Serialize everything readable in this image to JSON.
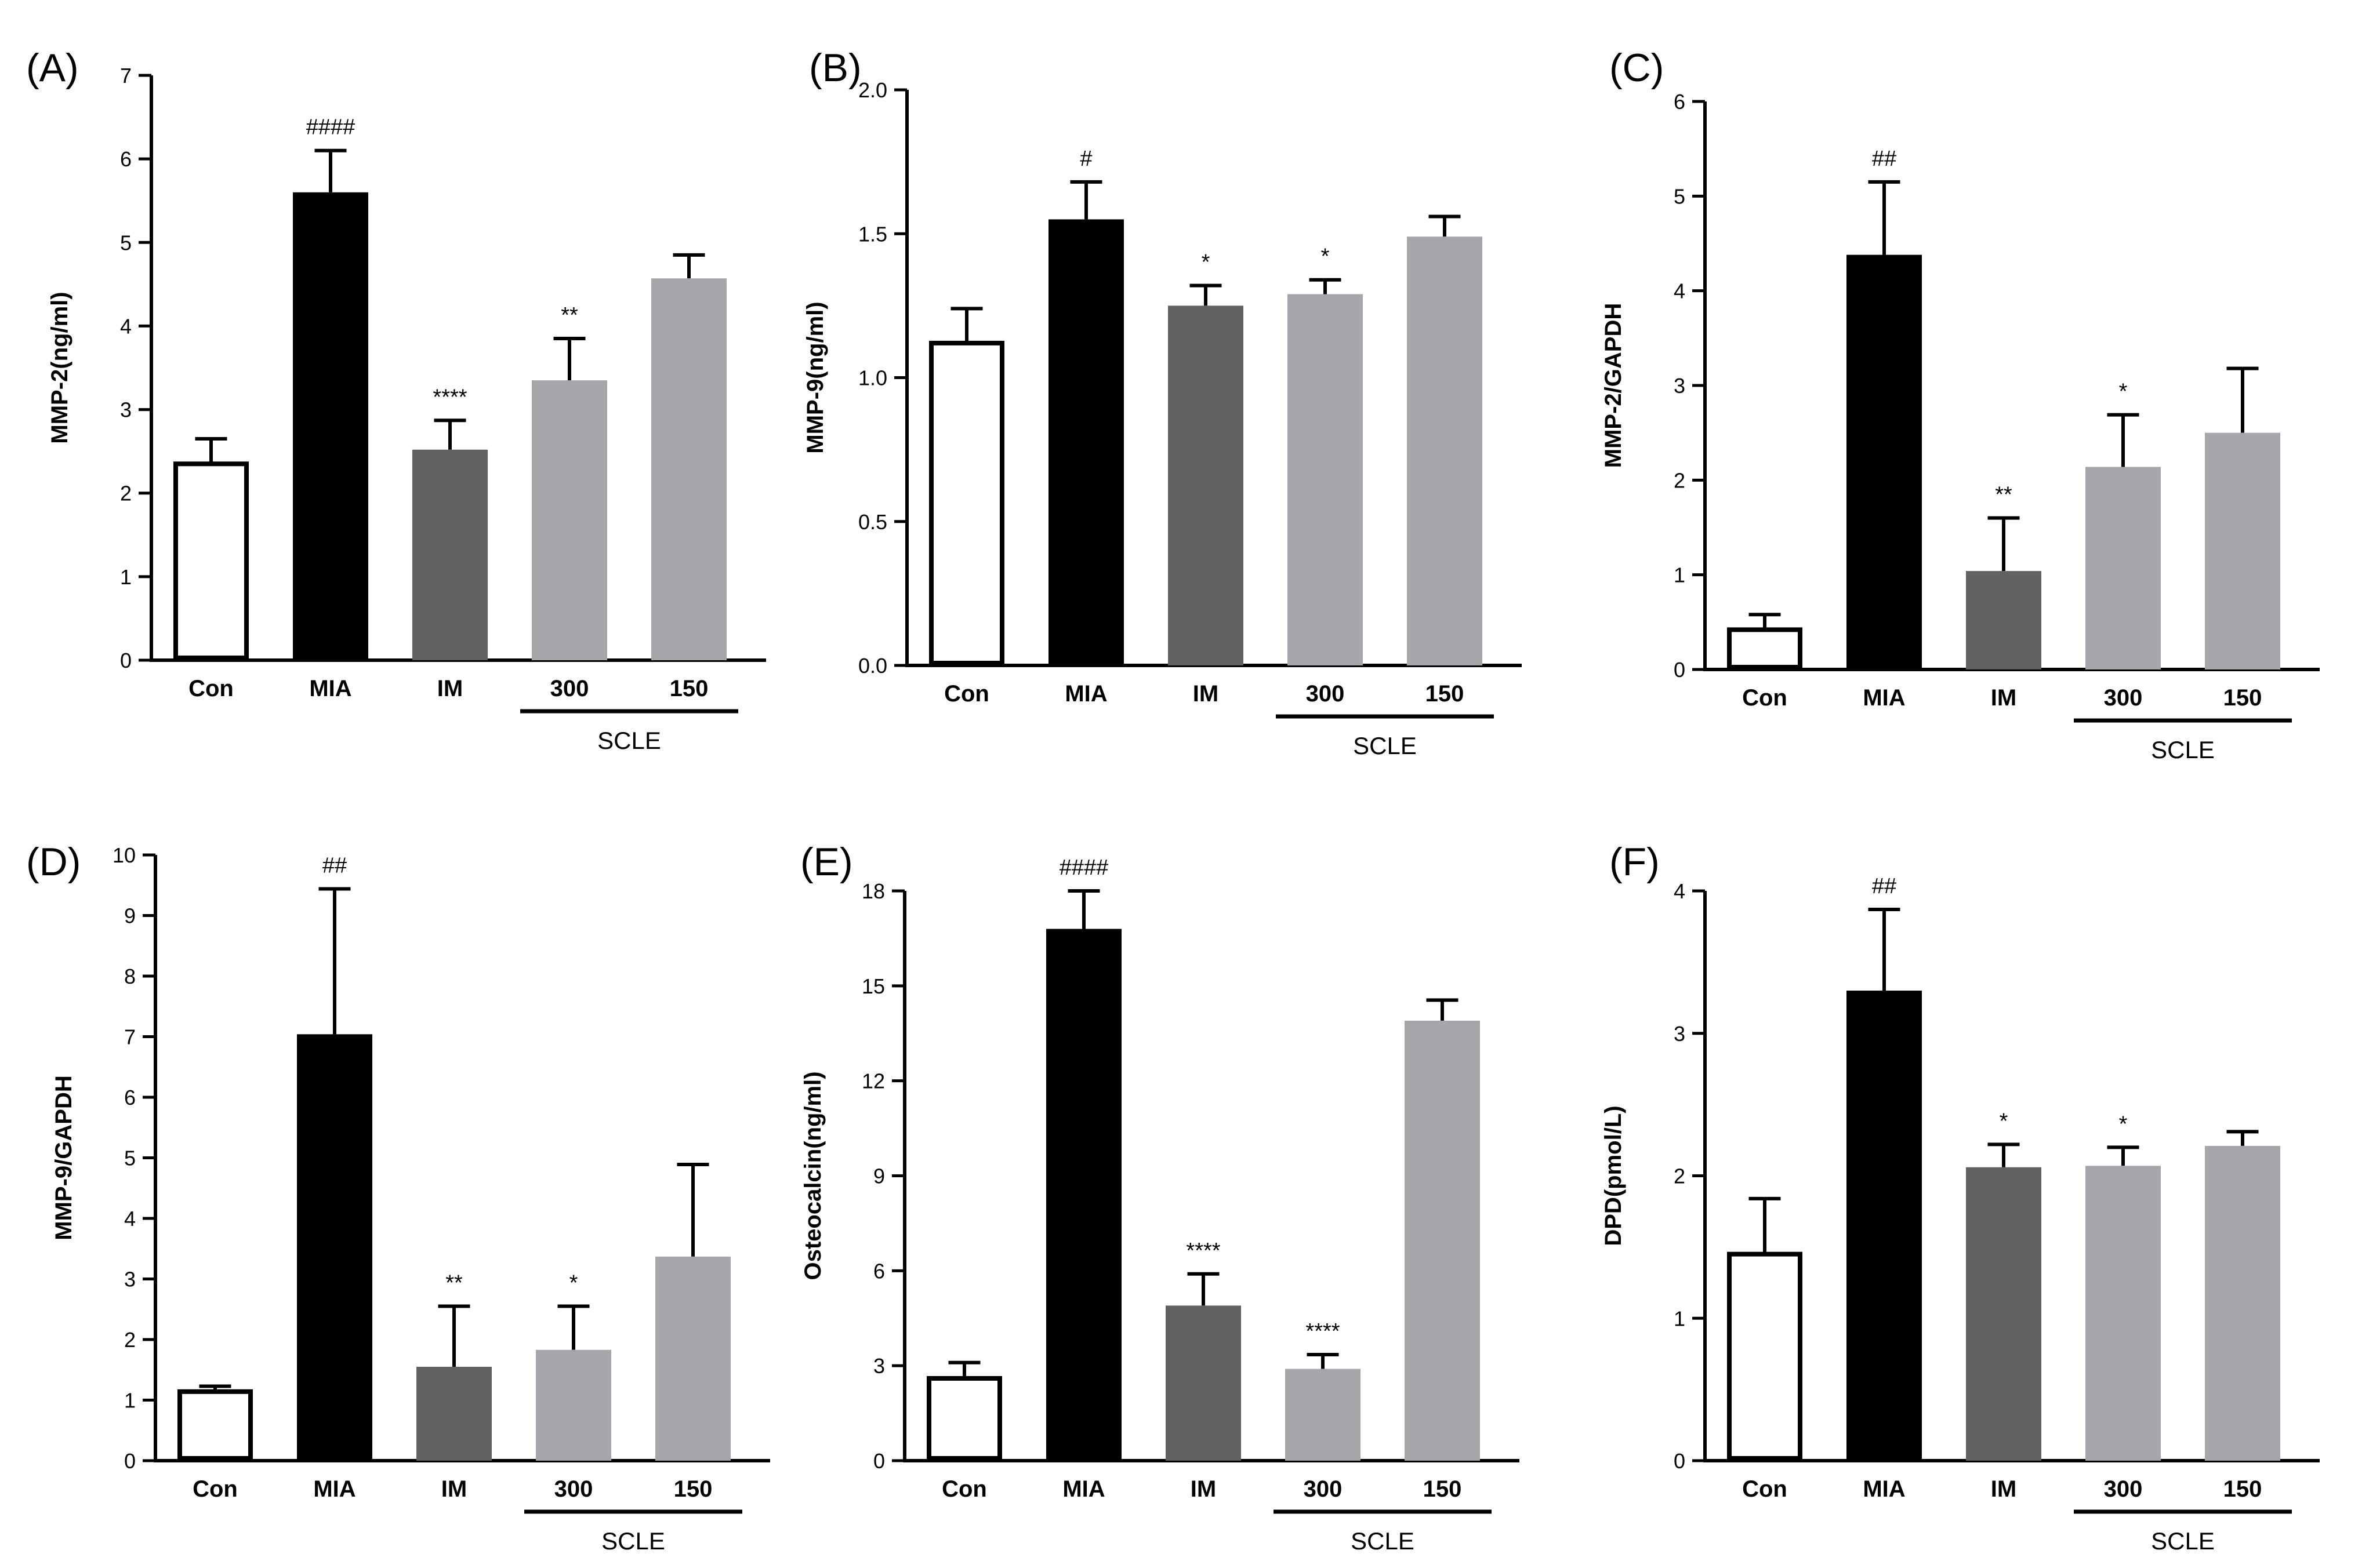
{
  "chart_data": [
    {
      "type": "bar",
      "panel_label": "(A)",
      "ylabel": "MMP-2(ng/ml)",
      "ylim": [
        0,
        7
      ],
      "yticks": [
        "0",
        "1",
        "2",
        "3",
        "4",
        "5",
        "6",
        "7"
      ],
      "categories": [
        "Con",
        "MIA",
        "IM",
        "300",
        "150"
      ],
      "values": [
        2.35,
        5.6,
        2.52,
        3.35,
        4.57
      ],
      "errors": [
        0.3,
        0.5,
        0.35,
        0.5,
        0.28
      ],
      "significance": [
        "",
        "####",
        "****",
        "**",
        ""
      ],
      "group_label": "SCLE",
      "colors": [
        "#ffffff",
        "#000000",
        "#616161",
        "#a5a5aa",
        "#a5a5aa"
      ]
    },
    {
      "type": "bar",
      "panel_label": "(B)",
      "ylabel": "MMP-9(ng/ml)",
      "ylim": [
        0,
        2
      ],
      "yticks": [
        "0.0",
        "0.5",
        "1.0",
        "1.5",
        "2.0"
      ],
      "categories": [
        "Con",
        "MIA",
        "IM",
        "300",
        "150"
      ],
      "values": [
        1.12,
        1.55,
        1.25,
        1.29,
        1.49
      ],
      "errors": [
        0.12,
        0.13,
        0.07,
        0.05,
        0.07
      ],
      "significance": [
        "",
        "#",
        "*",
        "*",
        ""
      ],
      "group_label": "SCLE",
      "colors": [
        "#ffffff",
        "#000000",
        "#616161",
        "#a5a5aa",
        "#a5a5aa"
      ]
    },
    {
      "type": "bar",
      "panel_label": "(C)",
      "ylabel": "MMP-2/GAPDH",
      "ylim": [
        0,
        6
      ],
      "yticks": [
        "0",
        "1",
        "2",
        "3",
        "4",
        "5",
        "6"
      ],
      "categories": [
        "Con",
        "MIA",
        "IM",
        "300",
        "150"
      ],
      "values": [
        0.42,
        4.38,
        1.04,
        2.14,
        2.5
      ],
      "errors": [
        0.16,
        0.77,
        0.56,
        0.55,
        0.68
      ],
      "significance": [
        "",
        "##",
        "**",
        "*",
        ""
      ],
      "group_label": "SCLE",
      "colors": [
        "#ffffff",
        "#000000",
        "#616161",
        "#a5a5aa",
        "#a5a5aa"
      ]
    },
    {
      "type": "bar",
      "panel_label": "(D)",
      "ylabel": "MMP-9/GAPDH",
      "ylim": [
        0,
        10
      ],
      "yticks": [
        "0",
        "1",
        "2",
        "3",
        "4",
        "5",
        "6",
        "7",
        "8",
        "9",
        "10"
      ],
      "categories": [
        "Con",
        "MIA",
        "IM",
        "300",
        "150"
      ],
      "values": [
        1.14,
        7.04,
        1.55,
        1.83,
        3.37
      ],
      "errors": [
        0.09,
        2.4,
        1.0,
        0.72,
        1.52
      ],
      "significance": [
        "",
        "##",
        "**",
        "*",
        ""
      ],
      "group_label": "SCLE",
      "colors": [
        "#ffffff",
        "#000000",
        "#616161",
        "#a5a5aa",
        "#a5a5aa"
      ]
    },
    {
      "type": "bar",
      "panel_label": "(E)",
      "ylabel": "Osteocalcin(ng/ml)",
      "ylim": [
        0,
        18
      ],
      "yticks": [
        "0",
        "3",
        "6",
        "9",
        "12",
        "15",
        "18"
      ],
      "categories": [
        "Con",
        "MIA",
        "IM",
        "300",
        "150"
      ],
      "values": [
        2.6,
        16.8,
        4.9,
        2.9,
        13.9
      ],
      "errors": [
        0.5,
        1.2,
        1.0,
        0.45,
        0.65
      ],
      "significance": [
        "",
        "####",
        "****",
        "****",
        ""
      ],
      "group_label": "SCLE",
      "colors": [
        "#ffffff",
        "#000000",
        "#616161",
        "#a5a5aa",
        "#a5a5aa"
      ]
    },
    {
      "type": "bar",
      "panel_label": "(F)",
      "ylabel": "DPD(pmol/L)",
      "ylim": [
        0,
        4
      ],
      "yticks": [
        "0",
        "1",
        "2",
        "3",
        "4"
      ],
      "categories": [
        "Con",
        "MIA",
        "IM",
        "300",
        "150"
      ],
      "values": [
        1.45,
        3.3,
        2.06,
        2.07,
        2.21
      ],
      "errors": [
        0.39,
        0.57,
        0.16,
        0.13,
        0.1
      ],
      "significance": [
        "",
        "##",
        "*",
        "*",
        ""
      ],
      "group_label": "SCLE",
      "colors": [
        "#ffffff",
        "#000000",
        "#616161",
        "#a5a5aa",
        "#a5a5aa"
      ]
    }
  ]
}
